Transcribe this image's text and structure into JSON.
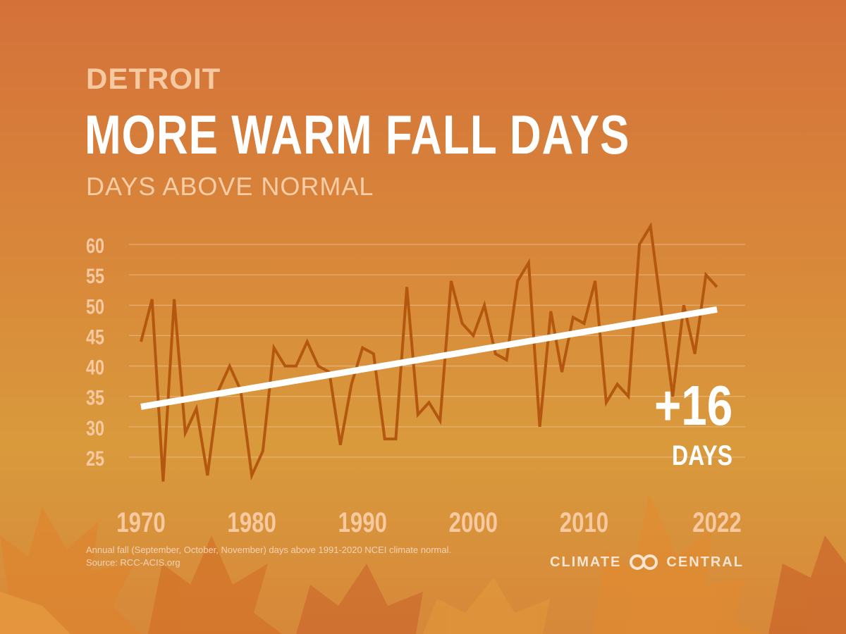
{
  "header": {
    "city": "DETROIT",
    "headline": "MORE WARM FALL DAYS",
    "subtitle": "DAYS ABOVE NORMAL"
  },
  "callout": {
    "value": "+16",
    "unit": "DAYS"
  },
  "footnote": {
    "line1": "Annual fall (September, October, November) days above 1991-2020 NCEI climate normal.",
    "line2": "Source: RCC-ACIS.org"
  },
  "brand": {
    "left": "CLIMATE",
    "right": "CENTRAL"
  },
  "colors": {
    "series": "#b5580f",
    "trend": "#ffffff",
    "gridline": "#f0c8a0",
    "tick_label": "#f6c9a0"
  },
  "chart_data": {
    "type": "line",
    "title": "MORE WARM FALL DAYS",
    "subtitle": "DAYS ABOVE NORMAL",
    "xlabel": "",
    "ylabel": "",
    "xlim": [
      1970,
      2022
    ],
    "ylim": [
      20,
      62
    ],
    "x_ticks": [
      "1970",
      "1980",
      "1990",
      "2000",
      "2010",
      "2022"
    ],
    "y_ticks": [
      "25",
      "30",
      "35",
      "40",
      "45",
      "50",
      "55",
      "60"
    ],
    "grid": true,
    "legend": "none",
    "x": [
      1970,
      1971,
      1972,
      1973,
      1974,
      1975,
      1976,
      1977,
      1978,
      1979,
      1980,
      1981,
      1982,
      1983,
      1984,
      1985,
      1986,
      1987,
      1988,
      1989,
      1990,
      1991,
      1992,
      1993,
      1994,
      1995,
      1996,
      1997,
      1998,
      1999,
      2000,
      2001,
      2002,
      2003,
      2004,
      2005,
      2006,
      2007,
      2008,
      2009,
      2010,
      2011,
      2012,
      2013,
      2014,
      2015,
      2016,
      2017,
      2018,
      2019,
      2020,
      2021,
      2022
    ],
    "series": [
      {
        "values": [
          44,
          51,
          21,
          51,
          29,
          33,
          22,
          36,
          40,
          36,
          22,
          26,
          43,
          40,
          40,
          44,
          40,
          39,
          27,
          37,
          43,
          42,
          28,
          28,
          53,
          32,
          34,
          31,
          54,
          47,
          45,
          50,
          42,
          41,
          54,
          57,
          30,
          49,
          39,
          48,
          47,
          54,
          34,
          37,
          35,
          60,
          63,
          49,
          35,
          50,
          42,
          55,
          53
        ]
      }
    ],
    "trend": {
      "start": [
        1970,
        33.3
      ],
      "end": [
        2022,
        49.3
      ],
      "change": "+16"
    }
  }
}
